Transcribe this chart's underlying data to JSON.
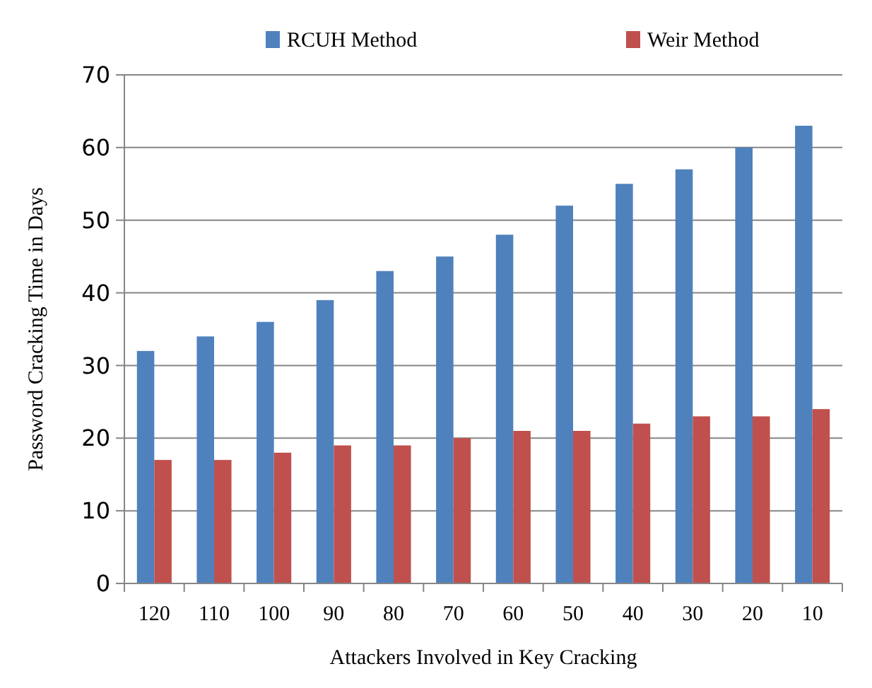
{
  "chart_data": {
    "type": "bar",
    "xlabel": "Attackers Involved in Key Cracking",
    "ylabel": "Password Cracking Time in Days",
    "categories": [
      "120",
      "110",
      "100",
      "90",
      "80",
      "70",
      "60",
      "50",
      "40",
      "30",
      "20",
      "10"
    ],
    "series": [
      {
        "name": "RCUH Method",
        "color": "#4f81bd",
        "values": [
          32,
          34,
          36,
          39,
          43,
          45,
          48,
          52,
          55,
          57,
          60,
          63
        ]
      },
      {
        "name": "Weir Method",
        "color": "#c0504d",
        "values": [
          17,
          17,
          18,
          19,
          19,
          20,
          21,
          21,
          22,
          23,
          23,
          24
        ]
      }
    ],
    "ylim": [
      0,
      70
    ],
    "yticks": [
      0,
      10,
      20,
      30,
      40,
      50,
      60,
      70
    ],
    "grid": "y",
    "legend": "top"
  }
}
